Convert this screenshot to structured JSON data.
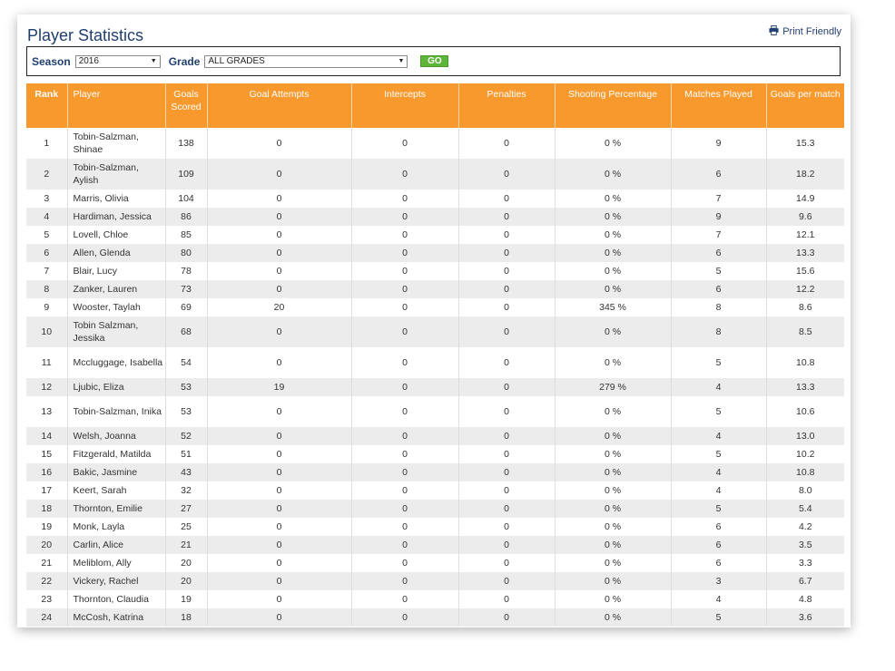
{
  "page_title": "Player Statistics",
  "print_label": "Print Friendly",
  "filters": {
    "season_label": "Season",
    "season_value": "2016",
    "grade_label": "Grade",
    "grade_value": "ALL GRADES",
    "go_label": "GO"
  },
  "table": {
    "headers": [
      "Rank",
      "Player",
      "Goals Scored",
      "Goal Attempts",
      "Intercepts",
      "Penalties",
      "Shooting Percentage",
      "Matches Played",
      "Goals per match"
    ],
    "rows": [
      [
        "1",
        "Tobin-Salzman, Shinae",
        "138",
        "0",
        "0",
        "0",
        "0 %",
        "9",
        "15.3"
      ],
      [
        "2",
        "Tobin-Salzman, Aylish",
        "109",
        "0",
        "0",
        "0",
        "0 %",
        "6",
        "18.2"
      ],
      [
        "3",
        "Marris, Olivia",
        "104",
        "0",
        "0",
        "0",
        "0 %",
        "7",
        "14.9"
      ],
      [
        "4",
        "Hardiman, Jessica",
        "86",
        "0",
        "0",
        "0",
        "0 %",
        "9",
        "9.6"
      ],
      [
        "5",
        "Lovell, Chloe",
        "85",
        "0",
        "0",
        "0",
        "0 %",
        "7",
        "12.1"
      ],
      [
        "6",
        "Allen, Glenda",
        "80",
        "0",
        "0",
        "0",
        "0 %",
        "6",
        "13.3"
      ],
      [
        "7",
        "Blair, Lucy",
        "78",
        "0",
        "0",
        "0",
        "0 %",
        "5",
        "15.6"
      ],
      [
        "8",
        "Zanker, Lauren",
        "73",
        "0",
        "0",
        "0",
        "0 %",
        "6",
        "12.2"
      ],
      [
        "9",
        "Wooster, Taylah",
        "69",
        "20",
        "0",
        "0",
        "345 %",
        "8",
        "8.6"
      ],
      [
        "10",
        "Tobin Salzman, Jessika",
        "68",
        "0",
        "0",
        "0",
        "0 %",
        "8",
        "8.5"
      ],
      [
        "11",
        "Mccluggage, Isabella",
        "54",
        "0",
        "0",
        "0",
        "0 %",
        "5",
        "10.8"
      ],
      [
        "12",
        "Ljubic, Eliza",
        "53",
        "19",
        "0",
        "0",
        "279 %",
        "4",
        "13.3"
      ],
      [
        "13",
        "Tobin-Salzman, Inika",
        "53",
        "0",
        "0",
        "0",
        "0 %",
        "5",
        "10.6"
      ],
      [
        "14",
        "Welsh, Joanna",
        "52",
        "0",
        "0",
        "0",
        "0 %",
        "4",
        "13.0"
      ],
      [
        "15",
        "Fitzgerald, Matilda",
        "51",
        "0",
        "0",
        "0",
        "0 %",
        "5",
        "10.2"
      ],
      [
        "16",
        "Bakic, Jasmine",
        "43",
        "0",
        "0",
        "0",
        "0 %",
        "4",
        "10.8"
      ],
      [
        "17",
        "Keert, Sarah",
        "32",
        "0",
        "0",
        "0",
        "0 %",
        "4",
        "8.0"
      ],
      [
        "18",
        "Thornton, Emilie",
        "27",
        "0",
        "0",
        "0",
        "0 %",
        "5",
        "5.4"
      ],
      [
        "19",
        "Monk, Layla",
        "25",
        "0",
        "0",
        "0",
        "0 %",
        "6",
        "4.2"
      ],
      [
        "20",
        "Carlin, Alice",
        "21",
        "0",
        "0",
        "0",
        "0 %",
        "6",
        "3.5"
      ],
      [
        "21",
        "Meliblom, Ally",
        "20",
        "0",
        "0",
        "0",
        "0 %",
        "6",
        "3.3"
      ],
      [
        "22",
        "Vickery, Rachel",
        "20",
        "0",
        "0",
        "0",
        "0 %",
        "3",
        "6.7"
      ],
      [
        "23",
        "Thornton, Claudia",
        "19",
        "0",
        "0",
        "0",
        "0 %",
        "4",
        "4.8"
      ],
      [
        "24",
        "McCosh, Katrina",
        "18",
        "0",
        "0",
        "0",
        "0 %",
        "5",
        "3.6"
      ]
    ]
  }
}
